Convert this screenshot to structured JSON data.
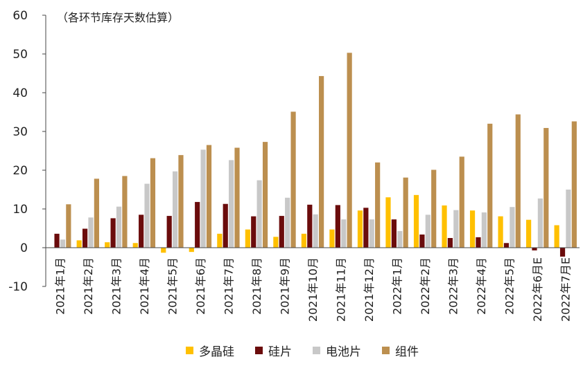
{
  "chart_data": {
    "type": "bar",
    "annotation": "（各环节库存天数估算）",
    "categories": [
      "2021年1月",
      "2021年2月",
      "2021年3月",
      "2021年4月",
      "2021年5月",
      "2021年6月",
      "2021年7月",
      "2021年8月",
      "2021年9月",
      "2021年10月",
      "2021年11月",
      "2021年12月",
      "2022年1月",
      "2022年2月",
      "2022年3月",
      "2022年4月",
      "2022年5月",
      "2022年6月E",
      "2022年7月E"
    ],
    "series": [
      {
        "name": "多晶硅",
        "color": "#FFC000",
        "values": [
          0.1,
          1.9,
          1.4,
          1.2,
          -1.3,
          -1.1,
          3.6,
          4.7,
          2.8,
          3.6,
          4.7,
          9.6,
          13.0,
          13.6,
          10.9,
          9.6,
          8.1,
          7.2,
          5.8
        ]
      },
      {
        "name": "硅片",
        "color": "#6B0C0C",
        "values": [
          3.6,
          4.9,
          7.6,
          8.5,
          8.2,
          11.8,
          11.3,
          8.1,
          8.2,
          11.1,
          11.0,
          10.3,
          7.3,
          3.4,
          2.5,
          2.7,
          1.2,
          -0.7,
          -2.3
        ]
      },
      {
        "name": "电池片",
        "color": "#C8C8C8",
        "values": [
          2.1,
          7.8,
          10.6,
          16.5,
          19.7,
          25.3,
          22.6,
          17.4,
          12.9,
          8.6,
          7.3,
          7.3,
          4.3,
          8.5,
          9.7,
          9.1,
          10.5,
          12.7,
          15.0
        ]
      },
      {
        "name": "组件",
        "color": "#BC8F4F",
        "values": [
          11.2,
          17.8,
          18.5,
          23.1,
          23.9,
          26.5,
          25.8,
          27.3,
          35.1,
          44.3,
          50.3,
          22.0,
          18.1,
          20.1,
          23.5,
          32.0,
          34.4,
          30.9,
          32.6
        ]
      }
    ],
    "ylim": [
      -10,
      60
    ],
    "yticks": [
      -10,
      0,
      10,
      20,
      30,
      40,
      50,
      60
    ],
    "grid": false,
    "legend_position": "bottom"
  }
}
